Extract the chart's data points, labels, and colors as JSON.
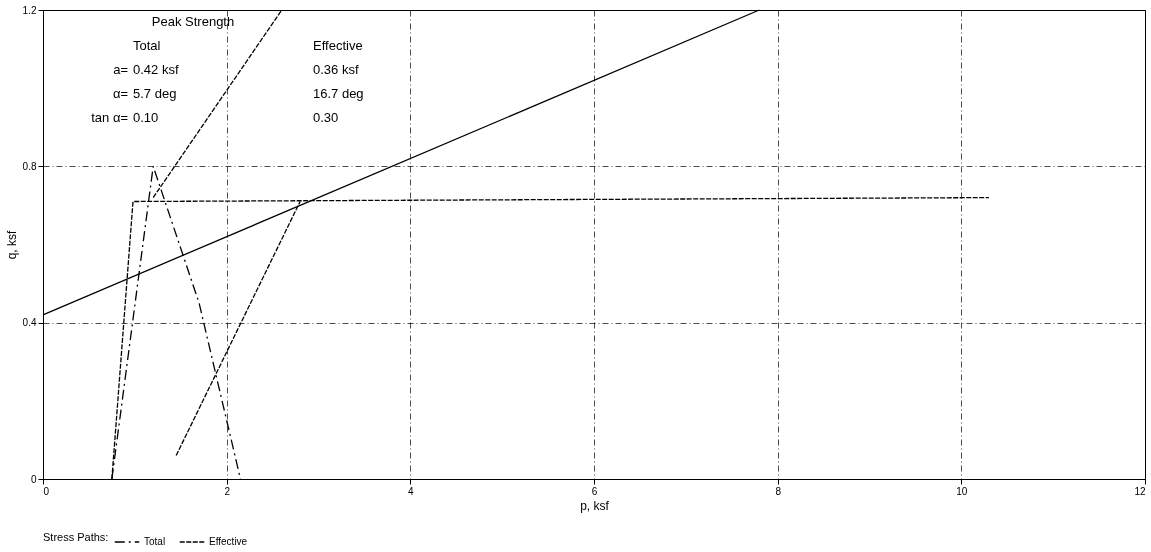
{
  "chart_data": {
    "type": "line",
    "xlabel": "p, ksf",
    "ylabel": "q, ksf",
    "legend_title": "Stress Paths:",
    "xlim": [
      0,
      12
    ],
    "ylim": [
      0,
      1.2
    ],
    "xticks": [
      0,
      2,
      4,
      6,
      8,
      10,
      12
    ],
    "yticks": [
      0,
      0.4,
      0.8,
      1.2
    ],
    "grid": true,
    "legend": "bottom",
    "marker": "none",
    "series": [
      {
        "name": "Total",
        "color": "#000000",
        "line_style": "dashdot",
        "x": [
          0.75,
          1.2,
          1.7,
          2.15
        ],
        "values": [
          0.0,
          0.8,
          0.45,
          0.0
        ]
      },
      {
        "name": "Effective",
        "color": "#000000",
        "line_style": "dashed",
        "x": [
          0.75,
          0.98,
          10.3
        ],
        "values": [
          0.0,
          0.71,
          0.72
        ]
      },
      {
        "color": "#000000",
        "line_style": "dashed",
        "x": [
          1.45,
          2.8
        ],
        "values": [
          0.06,
          0.71
        ]
      },
      {
        "color": "#000000",
        "line_style": "solid",
        "x": [
          0,
          7.8
        ],
        "values": [
          0.42,
          1.2
        ]
      },
      {
        "color": "#000000",
        "line_style": "dashed",
        "x": [
          1.2,
          2.6
        ],
        "values": [
          0.72,
          1.2
        ]
      }
    ],
    "annotations": [
      "Peak Strength",
      "Total",
      "Effective",
      "a=",
      "0.42 ksf",
      "0.36 ksf",
      "α=",
      "5.7 deg",
      "16.7 deg",
      "tan α=",
      "0.10",
      "0.30"
    ]
  }
}
